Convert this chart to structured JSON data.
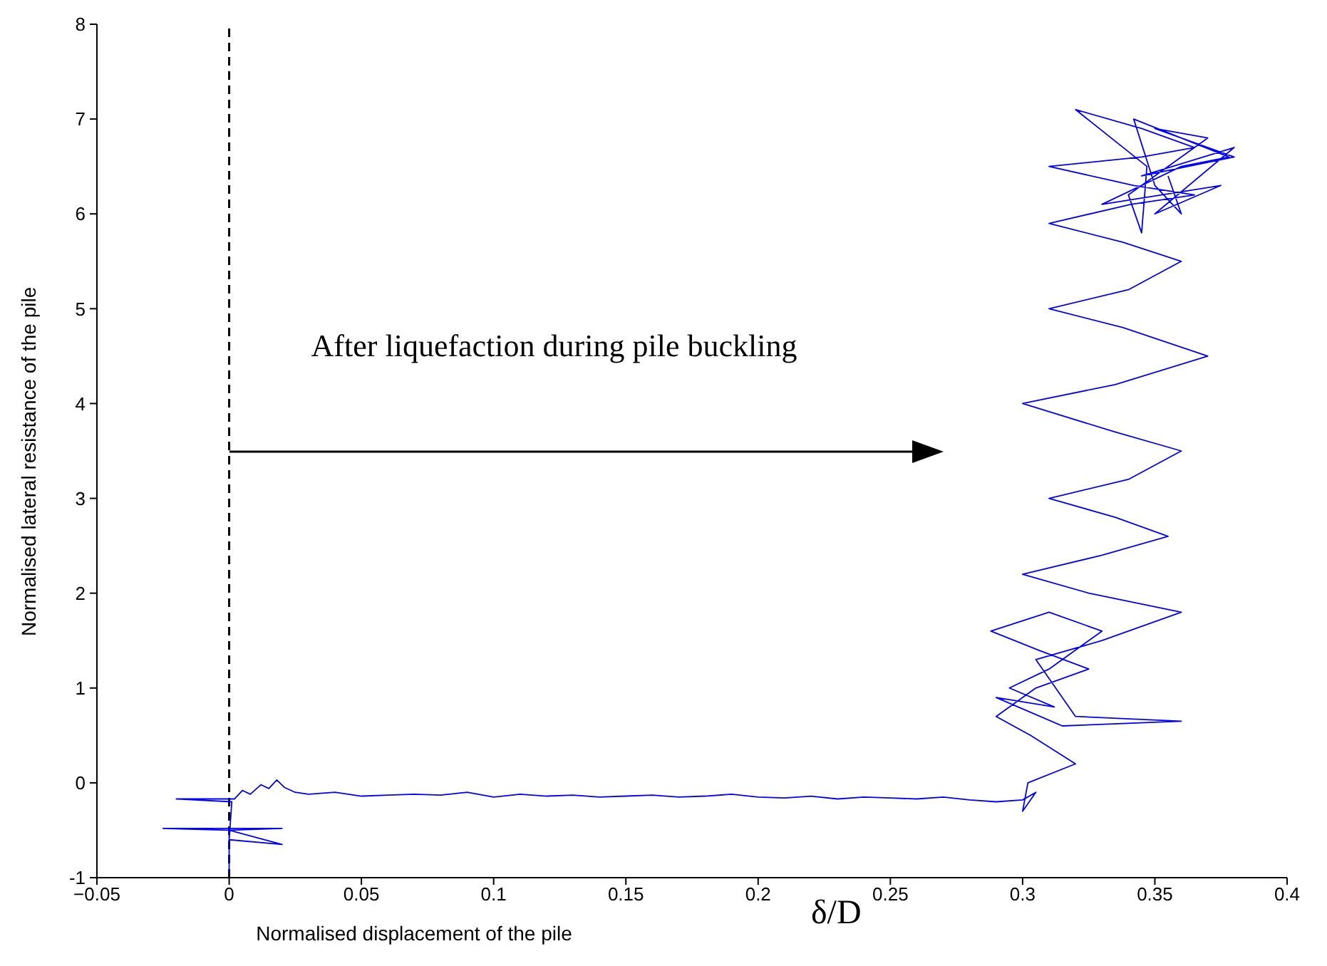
{
  "chart_data": {
    "type": "line",
    "xlabel": "Normalised displacement of the pile",
    "ylabel": "Normalised lateral resistance of the pile",
    "annotations": [
      "After liquefaction during pile buckling",
      "δ/D"
    ],
    "series": [
      {
        "color": "#0000ff",
        "x": [
          0,
          0,
          -0.025,
          0.02,
          0,
          0.02,
          0,
          0.001,
          -0.02,
          0.002,
          0.005,
          0.008,
          0.012,
          0.015,
          0.018,
          0.021,
          0.025,
          0.03,
          0.04,
          0.05,
          0.06,
          0.07,
          0.08,
          0.09,
          0.1,
          0.11,
          0.12,
          0.13,
          0.14,
          0.15,
          0.16,
          0.17,
          0.18,
          0.19,
          0.2,
          0.21,
          0.22,
          0.23,
          0.24,
          0.25,
          0.26,
          0.27,
          0.28,
          0.29,
          0.3,
          0.305,
          0.3,
          0.302,
          0.32,
          0.303,
          0.29,
          0.305,
          0.325,
          0.306,
          0.288,
          0.31,
          0.33,
          0.31,
          0.295,
          0.312,
          0.29,
          0.315,
          0.36,
          0.32,
          0.305,
          0.33,
          0.36,
          0.325,
          0.3,
          0.33,
          0.355,
          0.335,
          0.31,
          0.34,
          0.36,
          0.335,
          0.3,
          0.335,
          0.37,
          0.338,
          0.31,
          0.34,
          0.36,
          0.338,
          0.31,
          0.341,
          0.365,
          0.342,
          0.31,
          0.345,
          0.365,
          0.345,
          0.32,
          0.347,
          0.345,
          0.34,
          0.37,
          0.35,
          0.38,
          0.345,
          0.38,
          0.35,
          0.375,
          0.33,
          0.36,
          0.378,
          0.342,
          0.35,
          0.36,
          0.355
        ],
        "values": [
          -0.95,
          -0.5,
          -0.48,
          -0.48,
          -0.5,
          -0.65,
          -0.6,
          -0.2,
          -0.17,
          -0.17,
          -0.08,
          -0.12,
          -0.02,
          -0.06,
          0.03,
          -0.05,
          -0.1,
          -0.12,
          -0.1,
          -0.14,
          -0.13,
          -0.12,
          -0.13,
          -0.1,
          -0.15,
          -0.12,
          -0.14,
          -0.13,
          -0.15,
          -0.14,
          -0.13,
          -0.15,
          -0.14,
          -0.12,
          -0.15,
          -0.16,
          -0.14,
          -0.17,
          -0.15,
          -0.16,
          -0.17,
          -0.15,
          -0.18,
          -0.2,
          -0.18,
          -0.1,
          -0.3,
          0,
          0.2,
          0.5,
          0.7,
          1.0,
          1.2,
          1.4,
          1.6,
          1.8,
          1.6,
          1.2,
          1.0,
          0.8,
          0.9,
          0.6,
          0.65,
          0.7,
          1.3,
          1.5,
          1.8,
          2.0,
          2.2,
          2.4,
          2.6,
          2.8,
          3.0,
          3.2,
          3.5,
          3.7,
          4.0,
          4.2,
          4.5,
          4.8,
          5.0,
          5.2,
          5.5,
          5.7,
          5.9,
          6.1,
          6.2,
          6.3,
          6.5,
          6.6,
          6.7,
          6.9,
          7.1,
          6.5,
          5.8,
          6.2,
          6.8,
          6.9,
          6.6,
          6.4,
          6.7,
          6.0,
          6.3,
          6.1,
          6.5,
          6.6,
          7.0,
          6.3,
          6.0,
          6.4
        ]
      }
    ],
    "xlim": [
      -0.05,
      0.4
    ],
    "xticks": [
      {
        "value": -0.05,
        "label": "−0.05"
      },
      0,
      0.05,
      0.1,
      0.15,
      0.2,
      0.25,
      0.3,
      0.35,
      0.4
    ],
    "ylim": [
      -1,
      8
    ],
    "yticks": [
      -1,
      0,
      1,
      2,
      3,
      4,
      5,
      6,
      7,
      8
    ],
    "ref_lines": [
      {
        "axis": "x",
        "value": 0,
        "line_style": "dashed",
        "color": "#000000"
      }
    ],
    "grid": false,
    "legend": false,
    "marker": "none",
    "line_style": "solid"
  }
}
